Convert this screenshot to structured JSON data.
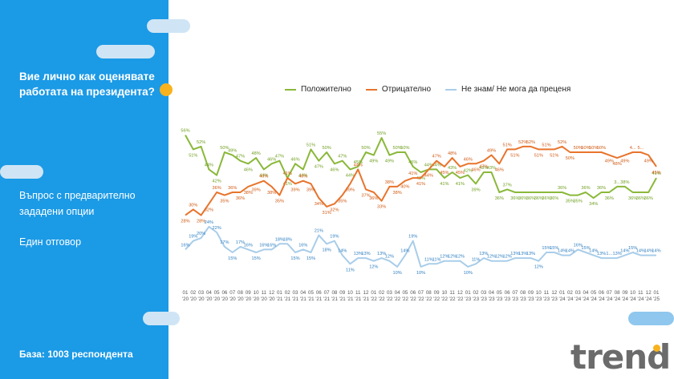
{
  "question": "Вие лично как оценявате работата на президента?",
  "question_type": "Въпрос с предварително зададени опции",
  "answer_mode": "Един отговор",
  "base": "База:  1003 респондента",
  "logo": "trend",
  "colors": {
    "positive": "#8ab83a",
    "negative": "#e8742c",
    "dontknow": "#a9cde9",
    "panel": "#1b9ae6",
    "accent": "#f7b21d"
  },
  "chart_data": {
    "type": "line",
    "categories": [
      "01 '20",
      "02 '20",
      "03 '20",
      "04 '20",
      "05 '20",
      "06 '20",
      "07 '20",
      "08 '20",
      "09 '20",
      "10 '20",
      "11 '20",
      "12 '20",
      "01 '21",
      "02 '21",
      "03 '21",
      "04 '21",
      "05 '21",
      "06 '21",
      "07 '21",
      "08 '21",
      "09 '21",
      "10 '21",
      "11 '21",
      "12 '21",
      "01 '22",
      "02 '22",
      "03 '22",
      "04 '22",
      "05 '22",
      "06 '22",
      "07 '22",
      "08 '22",
      "09 '22",
      "10 '22",
      "11 '22",
      "12 '22",
      "01 '23",
      "02 '23",
      "03 '23",
      "04 '23",
      "05 '23",
      "06 '23",
      "07 '23",
      "08 '23",
      "09 '23",
      "10 '23",
      "11 '23",
      "12 '23",
      "01 '24",
      "02 '24",
      "03 '24",
      "04 '24",
      "05 '24",
      "06 '24",
      "07 '24",
      "08 '24",
      "09 '24",
      "10 '24",
      "11 '24",
      "12 '24",
      "01 '25"
    ],
    "ylim": [
      0,
      60
    ],
    "series": [
      {
        "name": "Положително",
        "key": "positive",
        "values": [
          56,
          51,
          52,
          44,
          42,
          50,
          49,
          47,
          46,
          48,
          44,
          46,
          47,
          41,
          46,
          44,
          51,
          47,
          50,
          46,
          47,
          44,
          45,
          50,
          49,
          55,
          49,
          50,
          50,
          45,
          43,
          44,
          44,
          41,
          43,
          41,
          42,
          39,
          43,
          43,
          36,
          37,
          36,
          36,
          36,
          36,
          36,
          36,
          36,
          35,
          35,
          36,
          34,
          36,
          36,
          38,
          38,
          36,
          36,
          36,
          41
        ]
      },
      {
        "name": "Отрицателно",
        "key": "negative",
        "values": [
          28,
          30,
          28,
          32,
          36,
          35,
          36,
          36,
          38,
          39,
          40,
          38,
          35,
          41,
          39,
          40,
          39,
          34,
          31,
          32,
          35,
          39,
          44,
          37,
          36,
          33,
          38,
          38,
          40,
          41,
          41,
          44,
          47,
          45,
          48,
          45,
          46,
          46,
          47,
          49,
          46,
          51,
          51,
          52,
          52,
          51,
          51,
          51,
          52,
          50,
          50,
          50,
          50,
          50,
          49,
          48,
          49,
          50,
          50,
          49,
          45
        ]
      },
      {
        "name": "Не знам/ Не мога да преценя",
        "key": "dontknow",
        "values": [
          16,
          19,
          20,
          24,
          22,
          17,
          15,
          17,
          16,
          15,
          16,
          16,
          18,
          18,
          15,
          16,
          15,
          21,
          18,
          19,
          14,
          11,
          13,
          13,
          12,
          13,
          12,
          10,
          14,
          19,
          10,
          11,
          11,
          12,
          12,
          12,
          10,
          11,
          13,
          12,
          12,
          12,
          13,
          13,
          13,
          12,
          15,
          15,
          14,
          14,
          16,
          15,
          14,
          13,
          13,
          13,
          14,
          15,
          14,
          14,
          14
        ]
      }
    ],
    "point_labels": {
      "positive": [
        "56%",
        "51%",
        "52%",
        "44%",
        "42%",
        "50%",
        "49%",
        "47%",
        "46%",
        "48%",
        "44%",
        "46%",
        "47%",
        "41%",
        "46%",
        "44%",
        "51%",
        "47%",
        "50%",
        "46%",
        "47%",
        "44%",
        "45%",
        "50%",
        "49%",
        "55%",
        "49%",
        "50%",
        "50%",
        "45%",
        "43%",
        "44%",
        "44%",
        "41%",
        "43%",
        "41%",
        "42%",
        "39%",
        "43%",
        "43%",
        "36%",
        "37%",
        "36%",
        "36%",
        "36%",
        "36%",
        "36%",
        "36%",
        "36%",
        "35%",
        "35%",
        "36%",
        "34%",
        "36%",
        "36%",
        "3...",
        "38%",
        "36%",
        "36%",
        "36%",
        "41%"
      ],
      "negative": [
        "28%",
        "30%",
        "28%",
        "32%",
        "36%",
        "35%",
        "36%",
        "36%",
        "38%",
        "39%",
        "40%",
        "38%",
        "35%",
        "41%",
        "39%",
        "40%",
        "39%",
        "34%",
        "31%",
        "32%",
        "35%",
        "39%",
        "44%",
        "37%",
        "36%",
        "33%",
        "38%",
        "38%",
        "40%",
        "41%",
        "41%",
        "44%",
        "47%",
        "45%",
        "48%",
        "45%",
        "46%",
        "46%",
        "47%",
        "49%",
        "46%",
        "51%",
        "51%",
        "52%",
        "52%",
        "51%",
        "51%",
        "51%",
        "52%",
        "50%",
        "50%",
        "50%",
        "50%",
        "50%",
        "49%",
        "48%",
        "49%",
        "4...",
        "5...",
        "49%",
        "45%"
      ],
      "dontknow": [
        "16%",
        "19%",
        "20%",
        "24%",
        "22%",
        "17%",
        "15%",
        "17%",
        "16%",
        "15%",
        "16%",
        "16%",
        "18%",
        "18%",
        "15%",
        "16%",
        "15%",
        "21%",
        "18%",
        "19%",
        "14%",
        "11%",
        "13%",
        "13%",
        "12%",
        "13%",
        "12%",
        "10%",
        "14%",
        "19%",
        "10%",
        "11%",
        "11%",
        "12%",
        "12%",
        "12%",
        "10%",
        "11%",
        "13%",
        "12%",
        "12%",
        "12%",
        "13%",
        "13%",
        "13%",
        "12%",
        "15%",
        "15%",
        "14%",
        "14%",
        "16%",
        "15%",
        "14%",
        "13%",
        "1...",
        "13%",
        "14%",
        "15%",
        "14%",
        "14%",
        "14%"
      ]
    }
  }
}
